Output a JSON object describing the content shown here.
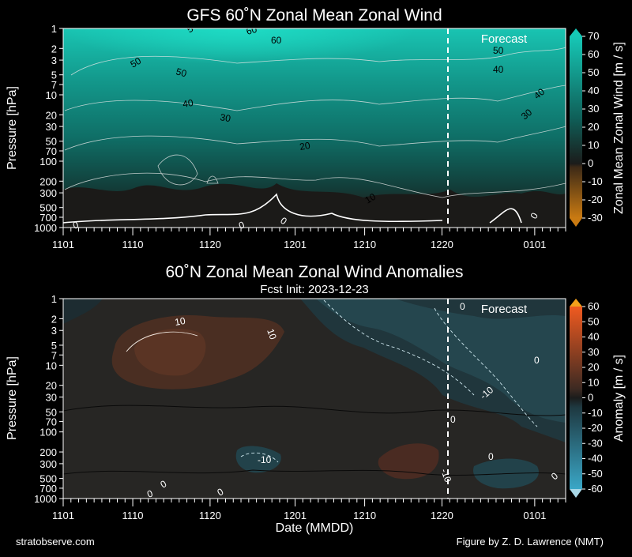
{
  "footer": {
    "left": "stratobserve.com",
    "right": "Figure by Z. D. Lawrence (NMT)"
  },
  "chart_data": [
    {
      "type": "heatmap",
      "title": "GFS 60˚N Zonal Mean Zonal Wind",
      "ylabel": "Pressure [hPa]",
      "xlabel": "",
      "x_tick_labels": [
        "1101",
        "1110",
        "1120",
        "1201",
        "1210",
        "1220",
        "0101"
      ],
      "x_tick_days": [
        0,
        9,
        19,
        30,
        39,
        49,
        61
      ],
      "y_tick_labels": [
        "1",
        "2",
        "3",
        "5",
        "7",
        "10",
        "20",
        "30",
        "50",
        "70",
        "100",
        "200",
        "300",
        "500",
        "700",
        "1000"
      ],
      "y_tick_values": [
        1,
        2,
        3,
        5,
        7,
        10,
        20,
        30,
        50,
        70,
        100,
        200,
        300,
        500,
        700,
        1000
      ],
      "ylim": [
        1000,
        1
      ],
      "forecast_label": "Forecast",
      "forecast_start_day": 52,
      "total_days": 65,
      "colorbar": {
        "label": "Zonal Mean Zonal Wind [m / s]",
        "range": [
          -30,
          70
        ],
        "ticks": [
          -30,
          -20,
          -10,
          0,
          10,
          20,
          30,
          40,
          50,
          60,
          70
        ],
        "colors": {
          "low": "#c97a12",
          "zero": "#1b1c1b",
          "high": "#16c8b6"
        }
      },
      "contour_labels": [
        "5",
        "60",
        "60",
        "50",
        "50",
        "50",
        "40",
        "40",
        "40",
        "30",
        "30",
        "20",
        "10",
        "0",
        "0",
        "0",
        "0"
      ]
    },
    {
      "type": "heatmap",
      "title": "60˚N Zonal Mean Zonal Wind Anomalies",
      "subtitle": "Fcst Init: 2023-12-23",
      "ylabel": "Pressure [hPa]",
      "xlabel": "Date (MMDD)",
      "x_tick_labels": [
        "1101",
        "1110",
        "1120",
        "1201",
        "1210",
        "1220",
        "0101"
      ],
      "x_tick_days": [
        0,
        9,
        19,
        30,
        39,
        49,
        61
      ],
      "y_tick_labels": [
        "1",
        "2",
        "3",
        "5",
        "7",
        "10",
        "20",
        "30",
        "50",
        "70",
        "100",
        "200",
        "300",
        "500",
        "700",
        "1000"
      ],
      "y_tick_values": [
        1,
        2,
        3,
        5,
        7,
        10,
        20,
        30,
        50,
        70,
        100,
        200,
        300,
        500,
        700,
        1000
      ],
      "ylim": [
        1000,
        1
      ],
      "forecast_label": "Forecast",
      "forecast_start_day": 52,
      "total_days": 65,
      "colorbar": {
        "label": "Anomaly [m / s]",
        "range": [
          -60,
          60
        ],
        "ticks": [
          -60,
          -50,
          -40,
          -30,
          -20,
          -10,
          0,
          10,
          20,
          30,
          40,
          50,
          60
        ],
        "colors": {
          "low": "#3aa7c7",
          "zero": "#1b1c1b",
          "high": "#f05a20"
        }
      },
      "contour_labels": [
        "10",
        "10",
        "0",
        "0",
        "0",
        "0",
        "-10",
        "0",
        "0",
        "0",
        "-10",
        "-10",
        "0"
      ]
    }
  ]
}
